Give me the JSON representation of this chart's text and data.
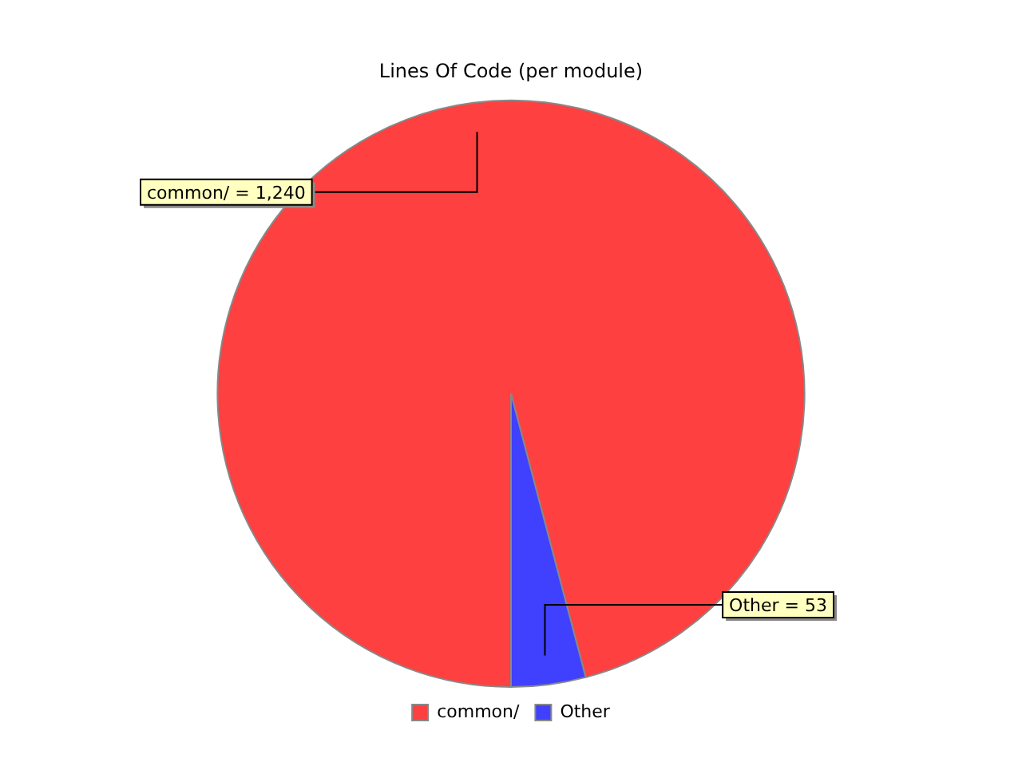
{
  "chart_data": {
    "type": "pie",
    "title": "Lines Of Code (per module)",
    "categories": [
      "common/",
      "Other"
    ],
    "values": [
      1240,
      53
    ],
    "value_labels": [
      "common/ = 1,240",
      "Other = 53"
    ],
    "colors": [
      "#ff4040",
      "#4040ff"
    ],
    "legend": "bottom"
  }
}
